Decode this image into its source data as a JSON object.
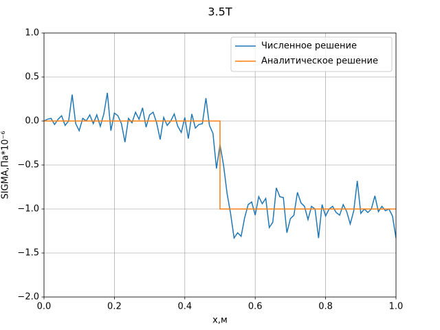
{
  "chart_data": {
    "type": "line",
    "title": "3.5T",
    "xlabel": "x,м",
    "ylabel": "SIGMA,Па*10⁻⁶",
    "xlim": [
      0,
      1
    ],
    "ylim": [
      -2,
      1
    ],
    "xticks": [
      {
        "value": 0,
        "label": "0.0"
      },
      0.2,
      0.4,
      0.6,
      0.8,
      {
        "value": 1,
        "label": "1.0"
      }
    ],
    "yticks": [
      {
        "value": -2,
        "label": "−2.0"
      },
      {
        "value": -1.5,
        "label": "−1.5"
      },
      {
        "value": -1,
        "label": "−1.0"
      },
      {
        "value": -0.5,
        "label": "−0.5"
      },
      {
        "value": 0,
        "label": "0.0"
      },
      0.5,
      {
        "value": 1,
        "label": "1.0"
      }
    ],
    "grid": true,
    "legend": "upper right",
    "series": [
      {
        "name": "Численное решение",
        "color": "#1f77b4",
        "x": [
          0,
          0.01,
          0.02,
          0.03,
          0.04,
          0.05,
          0.06,
          0.07,
          0.08,
          0.09,
          0.1,
          0.11,
          0.12,
          0.13,
          0.14,
          0.15,
          0.16,
          0.17,
          0.18,
          0.19,
          0.2,
          0.21,
          0.22,
          0.23,
          0.24,
          0.25,
          0.26,
          0.27,
          0.28,
          0.29,
          0.3,
          0.31,
          0.32,
          0.33,
          0.34,
          0.35,
          0.36,
          0.37,
          0.38,
          0.39,
          0.4,
          0.41,
          0.42,
          0.43,
          0.44,
          0.45,
          0.46,
          0.47,
          0.48,
          0.49,
          0.5,
          0.51,
          0.52,
          0.53,
          0.54,
          0.55,
          0.56,
          0.57,
          0.58,
          0.59,
          0.6,
          0.61,
          0.62,
          0.63,
          0.64,
          0.65,
          0.66,
          0.67,
          0.68,
          0.69,
          0.7,
          0.71,
          0.72,
          0.73,
          0.74,
          0.75,
          0.76,
          0.77,
          0.78,
          0.79,
          0.8,
          0.81,
          0.82,
          0.83,
          0.84,
          0.85,
          0.86,
          0.87,
          0.88,
          0.89,
          0.9,
          0.91,
          0.92,
          0.93,
          0.94,
          0.95,
          0.96,
          0.97,
          0.98,
          0.99,
          1
        ],
        "values": [
          0,
          0.02,
          0.03,
          -0.04,
          0.02,
          0.06,
          -0.05,
          0,
          0.3,
          -0.03,
          -0.11,
          0.03,
          0,
          0.07,
          -0.03,
          0.07,
          -0.06,
          0.08,
          0.32,
          -0.11,
          0.09,
          0.06,
          -0.03,
          -0.24,
          0.03,
          -0.02,
          0.1,
          0.02,
          0.15,
          -0.07,
          0.07,
          0.1,
          -0.02,
          -0.21,
          0.04,
          -0.05,
          0,
          0.08,
          -0.06,
          -0.13,
          0.04,
          -0.2,
          0.08,
          -0.08,
          -0.04,
          -0.03,
          0.26,
          -0.05,
          -0.14,
          -0.54,
          -0.27,
          -0.5,
          -0.82,
          -1.05,
          -1.33,
          -1.27,
          -1.31,
          -1.1,
          -0.95,
          -0.92,
          -1.07,
          -0.86,
          -0.94,
          -0.88,
          -1.21,
          -1.15,
          -0.76,
          -0.86,
          -0.87,
          -1.27,
          -1.11,
          -1.07,
          -0.81,
          -0.93,
          -0.97,
          -1.12,
          -0.97,
          -1,
          -1.33,
          -0.95,
          -1.08,
          -1,
          -0.97,
          -1.04,
          -1.07,
          -0.95,
          -1.03,
          -1.17,
          -1.02,
          -0.68,
          -1.05,
          -1,
          -1.04,
          -1,
          -0.85,
          -1.03,
          -0.97,
          -1.02,
          -1,
          -1.08,
          -1.33
        ]
      },
      {
        "name": "Аналитическое решение",
        "color": "#ff7f0e",
        "x": [
          0,
          0.5,
          0.5,
          1
        ],
        "values": [
          0,
          0,
          -1,
          -1
        ]
      }
    ]
  }
}
